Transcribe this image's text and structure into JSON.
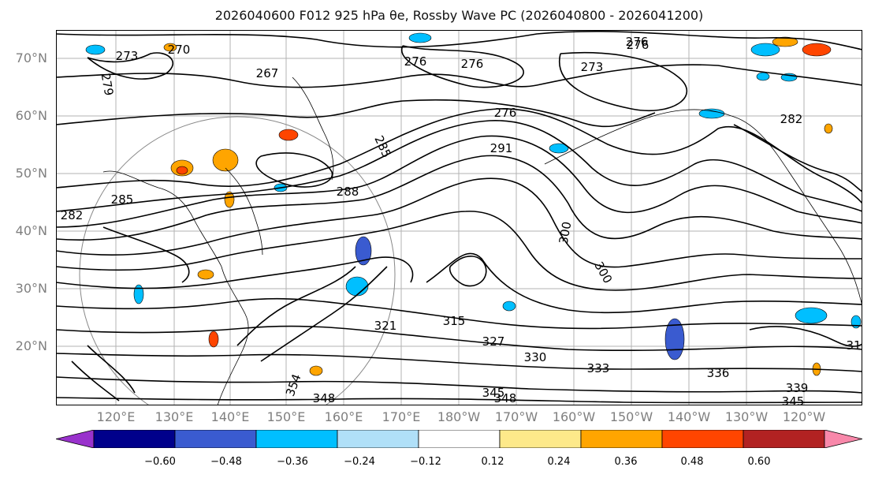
{
  "title": "2026040600 F012 925 hPa θe, Rossby Wave PC (2026040800 - 2026041200)",
  "map": {
    "lat_ticks": [
      "70°N",
      "60°N",
      "50°N",
      "40°N",
      "30°N",
      "20°N"
    ],
    "lon_ticks": [
      "120°E",
      "130°E",
      "140°E",
      "150°E",
      "160°E",
      "170°E",
      "180°W",
      "170°W",
      "160°W",
      "150°W",
      "140°W",
      "130°W",
      "120°W"
    ],
    "contour_labels": [
      "273",
      "270",
      "279",
      "267",
      "276",
      "276",
      "273",
      "276",
      "276",
      "291",
      "285",
      "285",
      "282",
      "288",
      "300",
      "300",
      "321",
      "315",
      "327",
      "330",
      "333",
      "336",
      "339",
      "345",
      "348",
      "348",
      "345",
      "354",
      "282",
      "276",
      "31"
    ]
  },
  "colorbar": {
    "tick_labels": [
      "−0.60",
      "−0.48",
      "−0.36",
      "−0.24",
      "−0.12",
      "0.12",
      "0.24",
      "0.36",
      "0.48",
      "0.60"
    ],
    "colors": [
      "#9932cc",
      "#00008b",
      "#3a5bd0",
      "#00bfff",
      "#b0e0f8",
      "#ffffff",
      "#fde98a",
      "#ffa500",
      "#ff4500",
      "#b22222",
      "#f888aa"
    ]
  }
}
